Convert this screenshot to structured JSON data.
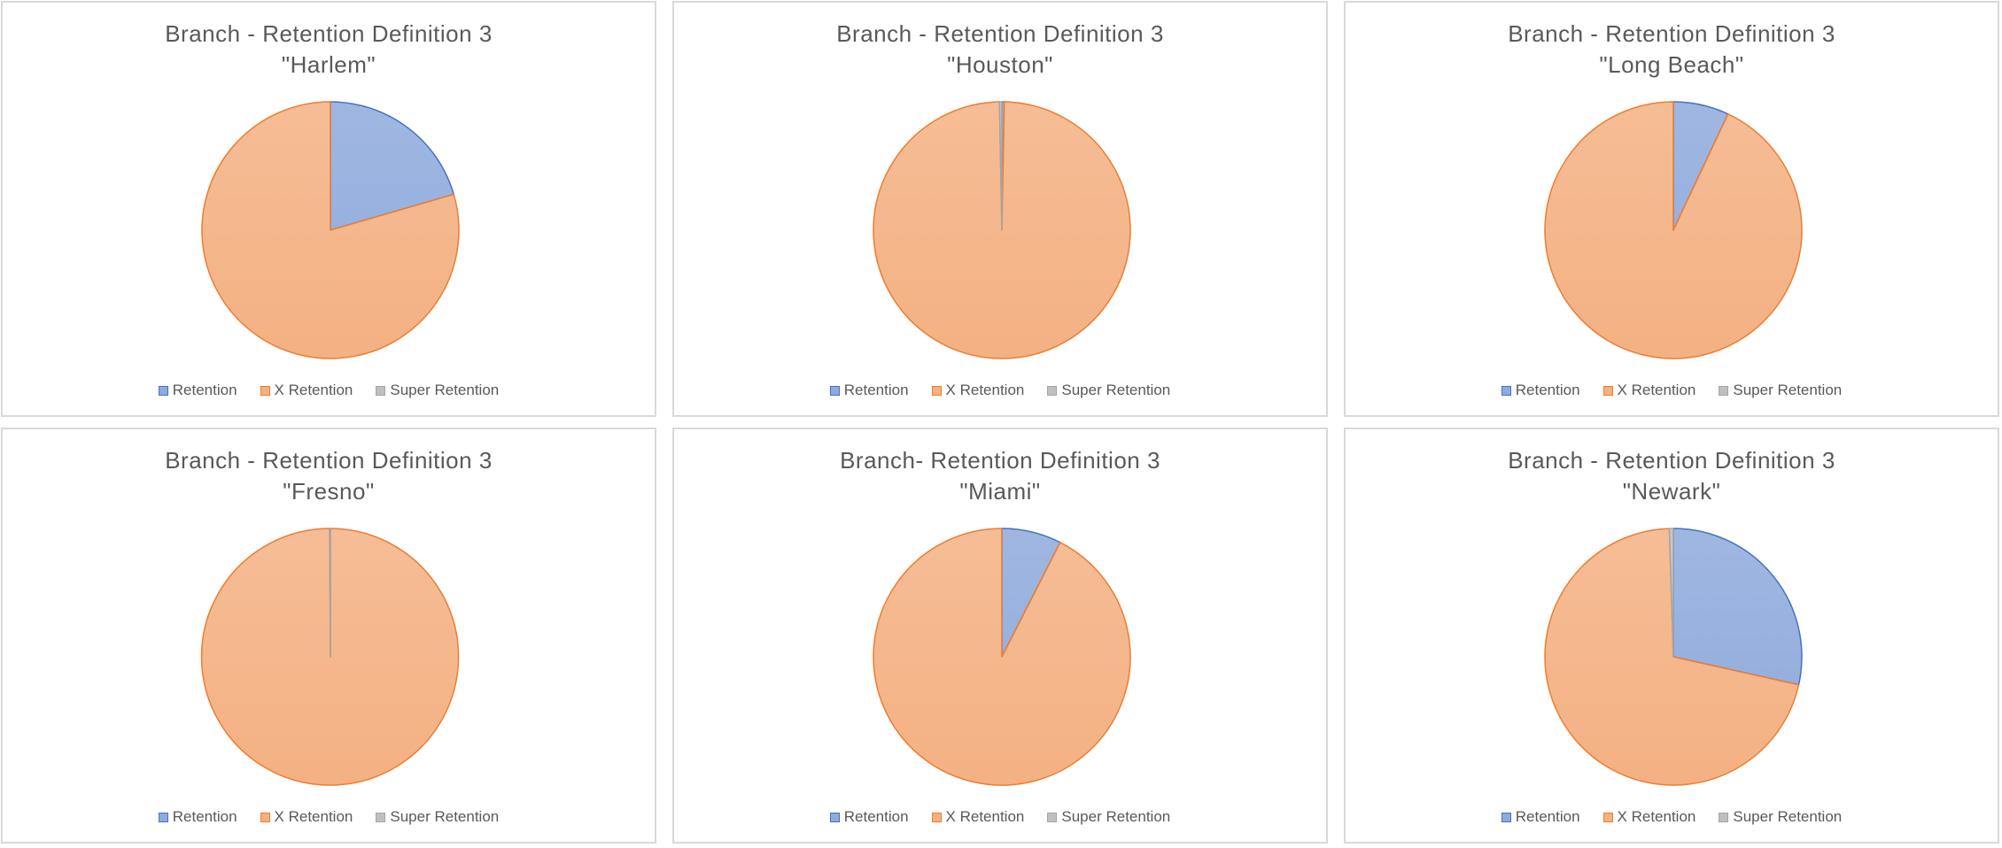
{
  "colors": {
    "retention": "#8faadc",
    "retention_edge": "#4472c4",
    "x_retention": "#f4b183",
    "x_retention_edge": "#ed7d31",
    "super_retention": "#bfbfbf",
    "super_retention_edge": "#a5a5a5"
  },
  "chart_data": [
    {
      "type": "pie",
      "title_line1": "Branch - Retention Definition 3",
      "title_line2": "\"Harlem\"",
      "categories": [
        "Retention",
        "X Retention",
        "Super Retention"
      ],
      "values": [
        20.5,
        79.5,
        0
      ]
    },
    {
      "type": "pie",
      "title_line1": "Branch - Retention Definition 3",
      "title_line2": "\"Houston\"",
      "categories": [
        "Retention",
        "X Retention",
        "Super Retention"
      ],
      "values": [
        0.3,
        99.4,
        0.3
      ]
    },
    {
      "type": "pie",
      "title_line1": "Branch - Retention Definition 3",
      "title_line2": "\"Long Beach\"",
      "categories": [
        "Retention",
        "X Retention",
        "Super Retention"
      ],
      "values": [
        7,
        93,
        0
      ]
    },
    {
      "type": "pie",
      "title_line1": "Branch - Retention Definition 3",
      "title_line2": "\"Fresno\"",
      "categories": [
        "Retention",
        "X Retention",
        "Super Retention"
      ],
      "values": [
        0,
        99.9,
        0.1
      ]
    },
    {
      "type": "pie",
      "title_line1": "Branch- Retention Definition 3",
      "title_line2": "\"Miami\"",
      "categories": [
        "Retention",
        "X Retention",
        "Super Retention"
      ],
      "values": [
        7.5,
        92.5,
        0
      ]
    },
    {
      "type": "pie",
      "title_line1": "Branch - Retention Definition 3",
      "title_line2": "\"Newark\"",
      "categories": [
        "Retention",
        "X Retention",
        "Super Retention"
      ],
      "values": [
        28.5,
        71,
        0.5
      ]
    }
  ],
  "legend": {
    "retention": "Retention",
    "x_retention": "X Retention",
    "super_retention": "Super Retention"
  }
}
